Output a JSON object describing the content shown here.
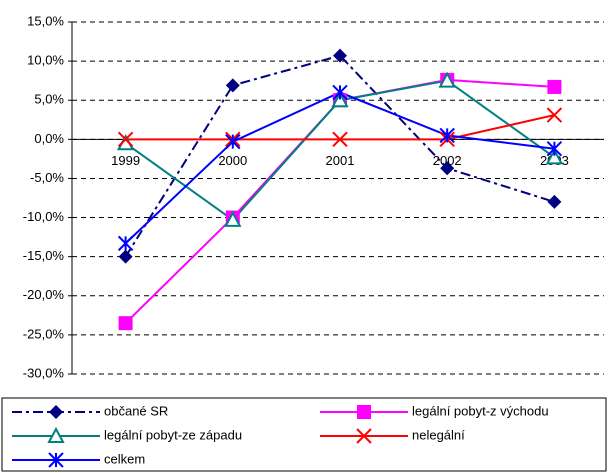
{
  "chart_data": {
    "type": "line",
    "categories": [
      "1999",
      "2000",
      "2001",
      "2002",
      "2003"
    ],
    "ylim": [
      -30,
      15
    ],
    "yticks": [
      {
        "value": -30,
        "label": "-30,0%"
      },
      {
        "value": -25,
        "label": "-25,0%"
      },
      {
        "value": -20,
        "label": "-20,0%"
      },
      {
        "value": -15,
        "label": "-15,0%"
      },
      {
        "value": -10,
        "label": "-10,0%"
      },
      {
        "value": -5,
        "label": "-5,0%"
      },
      {
        "value": 0,
        "label": "0,0%"
      },
      {
        "value": 5,
        "label": "5,0%"
      },
      {
        "value": 10,
        "label": "10,0%"
      },
      {
        "value": 15,
        "label": "15,0%"
      }
    ],
    "grid": true,
    "series": [
      {
        "name": "občané SR",
        "color": "#000080",
        "linestyle": "dashdot",
        "marker": "diamond",
        "values": [
          -15.0,
          6.9,
          10.7,
          -3.7,
          -8.0
        ]
      },
      {
        "name": "legální pobyt-z východu",
        "color": "#ff00ff",
        "linestyle": "solid",
        "marker": "square",
        "values": [
          -23.5,
          -10.0,
          5.0,
          7.6,
          6.7
        ]
      },
      {
        "name": "legální pobyt-ze západu",
        "color": "#008080",
        "linestyle": "solid",
        "marker": "triangle",
        "values": [
          -0.5,
          -10.3,
          5.0,
          7.5,
          -2.3
        ]
      },
      {
        "name": "nelegální",
        "color": "#ff0000",
        "linestyle": "solid",
        "marker": "x",
        "values": [
          0,
          0,
          0,
          0,
          3.1
        ]
      },
      {
        "name": "celkem",
        "color": "#0000ff",
        "linestyle": "solid",
        "marker": "star",
        "values": [
          -13.3,
          -0.3,
          6.0,
          0.5,
          -1.2
        ]
      }
    ]
  }
}
